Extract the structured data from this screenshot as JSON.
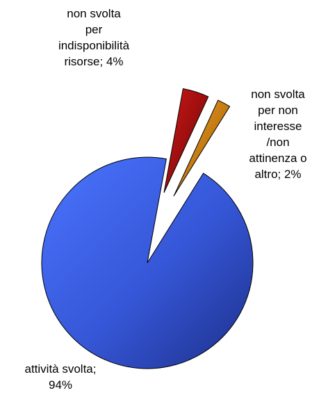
{
  "chart_data": {
    "type": "pie",
    "title": "",
    "slices": [
      {
        "label_lines": [
          "attività svolta;",
          "94%"
        ],
        "value": 94,
        "color": "#3e63f2"
      },
      {
        "label_lines": [
          "non svolta",
          "per",
          "indisponibilità",
          "risorse; 4%"
        ],
        "value": 4,
        "color": "#b01010"
      },
      {
        "label_lines": [
          "non svolta",
          "per non",
          "interesse",
          "/non",
          "attinenza o",
          "altro; 2%"
        ],
        "value": 2,
        "color": "#d2820a"
      }
    ],
    "exploded": true,
    "legend": "none"
  }
}
